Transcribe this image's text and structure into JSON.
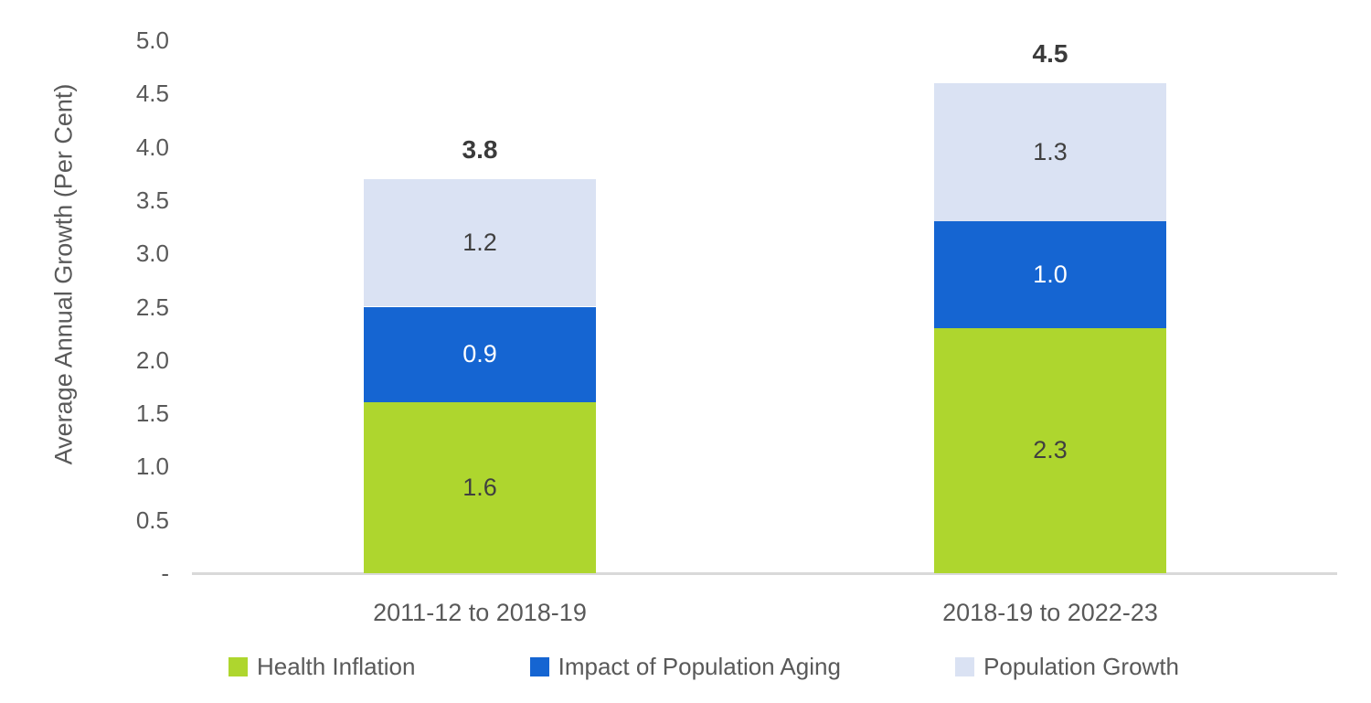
{
  "chart_data": {
    "type": "bar",
    "stacked": true,
    "ylabel": "Average Annual Growth (Per Cent)",
    "xlabel": "",
    "ylim": [
      0,
      5
    ],
    "ytick_labels": [
      "5.0",
      "4.5",
      "4.0",
      "3.5",
      "3.0",
      "2.5",
      "2.0",
      "1.5",
      "1.0",
      "0.5",
      "-"
    ],
    "categories": [
      "2011-12 to 2018-19",
      "2018-19 to 2022-23"
    ],
    "series": [
      {
        "name": "Health Inflation",
        "values": [
          1.6,
          2.3
        ],
        "color": "#AED62E",
        "label_color": "#404040"
      },
      {
        "name": "Impact of Population Aging",
        "values": [
          0.9,
          1.0
        ],
        "color": "#1565D2",
        "label_color": "#FFFFFF"
      },
      {
        "name": "Population Growth",
        "values": [
          1.2,
          1.3
        ],
        "color": "#DAE2F3",
        "label_color": "#404040"
      }
    ],
    "totals": [
      "3.8",
      "4.5"
    ],
    "legend_position": "bottom",
    "grid": false
  },
  "colors": {
    "axis_line": "#D9D9D9",
    "tick_text": "#595959",
    "total_text": "#3B3B3B"
  }
}
